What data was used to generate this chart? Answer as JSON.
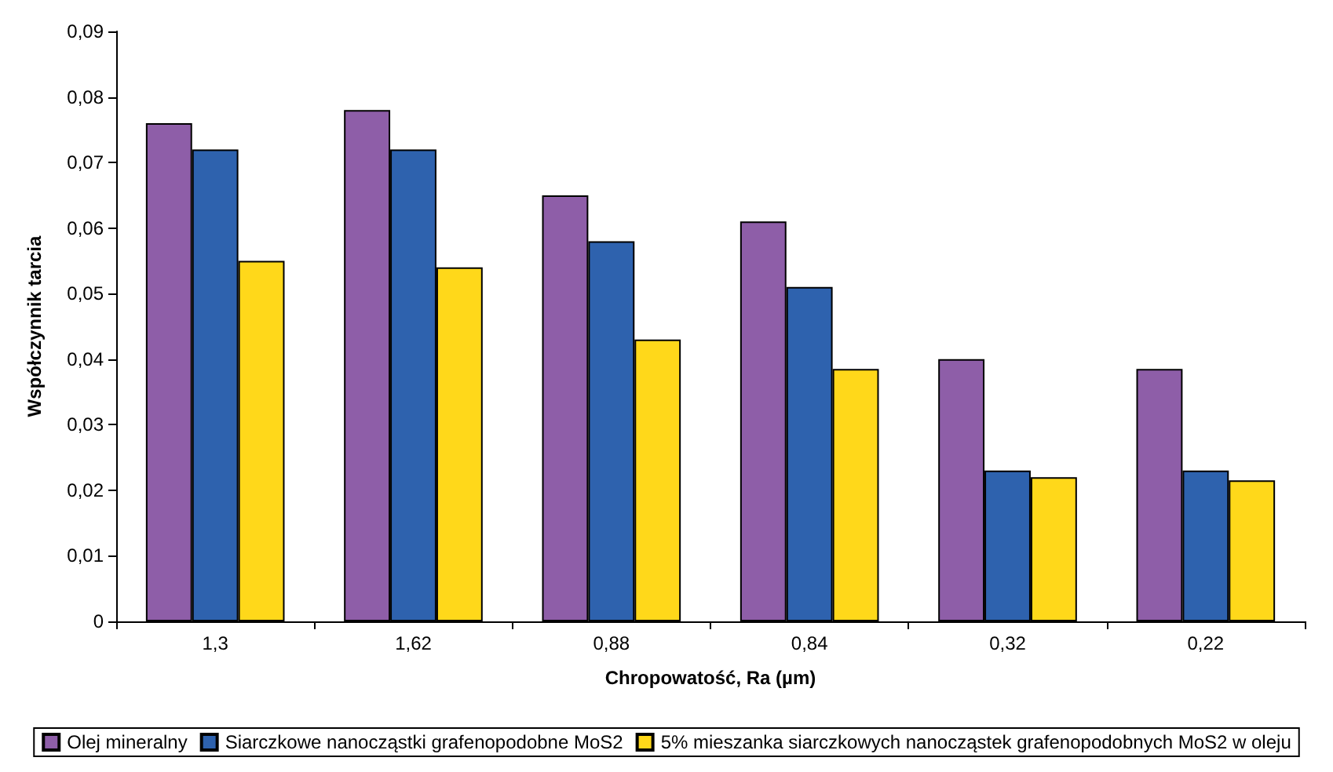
{
  "chart_data": {
    "type": "bar",
    "xlabel": "Chropowatość, Ra (µm)",
    "ylabel": "Współczynnik tarcia",
    "categories": [
      "1,3",
      "1,62",
      "0,88",
      "0,84",
      "0,32",
      "0,22"
    ],
    "series": [
      {
        "name": "Olej mineralny",
        "color": "#8e5ea8",
        "values": [
          0.076,
          0.078,
          0.065,
          0.061,
          0.04,
          0.0385
        ]
      },
      {
        "name": "Siarczkowe nanocząstki grafenopodobne MoS2",
        "color": "#2e62ae",
        "values": [
          0.072,
          0.072,
          0.058,
          0.051,
          0.023,
          0.023
        ]
      },
      {
        "name": "5% mieszanka siarczkowych nanocząstek grafenopodobnych MoS2 w oleju",
        "color": "#ffd81a",
        "values": [
          0.055,
          0.054,
          0.043,
          0.0385,
          0.022,
          0.0215
        ]
      }
    ],
    "ylim": [
      0,
      0.09
    ],
    "yticks": [
      {
        "value": 0,
        "label": "0"
      },
      {
        "value": 0.01,
        "label": "0,01"
      },
      {
        "value": 0.02,
        "label": "0,02"
      },
      {
        "value": 0.03,
        "label": "0,03"
      },
      {
        "value": 0.04,
        "label": "0,04"
      },
      {
        "value": 0.05,
        "label": "0,05"
      },
      {
        "value": 0.06,
        "label": "0,06"
      },
      {
        "value": 0.07,
        "label": "0,07"
      },
      {
        "value": 0.08,
        "label": "0,08"
      },
      {
        "value": 0.09,
        "label": "0,09"
      }
    ],
    "grid": false,
    "legend": "bottom"
  }
}
